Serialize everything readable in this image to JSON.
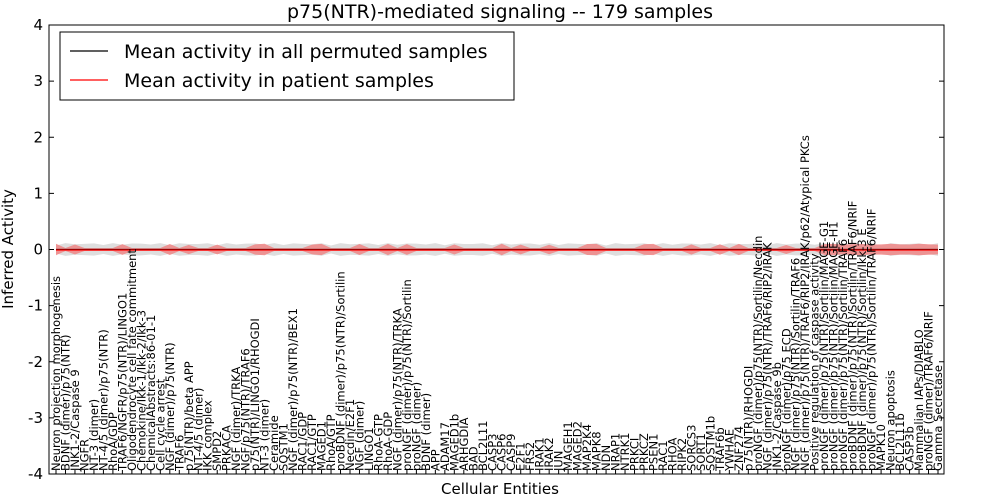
{
  "chart_data": {
    "type": "line",
    "title": "p75(NTR)-mediated signaling -- 179 samples",
    "xlabel": "Cellular Entities",
    "ylabel": "Inferred Activity",
    "ylim": [
      -4,
      4
    ],
    "yticks": [
      -4,
      -3,
      -2,
      -1,
      0,
      1,
      2,
      3,
      4
    ],
    "grid": false,
    "legend_position": "top-left",
    "series": [
      {
        "name": "Mean activity in all permuted samples",
        "color": "#000000",
        "value": 0
      },
      {
        "name": "Mean activity in patient samples",
        "color": "#ff0000",
        "value": 0
      }
    ],
    "band_colors": {
      "patient": "#f08080",
      "permuted": "#c8c8c8"
    },
    "categories": [
      "Neuron projection morphogenesis",
      "BDNF (dimer)/p75(NTR)",
      "JNK1-2/Caspase 9",
      "NGFR",
      "NT-3 (dimer)",
      "NT-4/5 (dimer)/p75(NTR)",
      "RhoA/GDP",
      "TRAF6/NGFR/p75(NTR)/LINGO1",
      "Oligodendrocyte cell fate commitment",
      "Chemokine/Ikk-1/Ikk-2/Ikk-3",
      "ChemicalAbstracts:86-01-1",
      "Cell cycle arrest",
      "NGF (dimer)/p75(NTR)",
      "TRAF6",
      "p75(NTR)/beta APP",
      "NT-4/5 (dimer)",
      "IKK complex",
      "SMPD2",
      "PRKACA",
      "NGF (dimer)/TRKA",
      "NGF/p75(NTR)/TRAF6",
      "p75(NTR)/LINGO1/RHOGDI",
      "NT-3 (dimer)",
      "Ceramide",
      "SQSTM1",
      "NGF (dimer)/p75(NTR)/BEX1",
      "RAC1/GDP",
      "RAC1/GTP",
      "MAGED1",
      "RhoA/GTP",
      "proBDNF (dimer)/p75(NTR)/Sortilin",
      "Necdin/E2F1",
      "NGF (dimer)",
      "LINGO1",
      "RhoA-GTP",
      "RhoA-GDP",
      "NGF (dimer)/p75(NTR)/TRKA",
      "proNGF (dimer)/p75(NTR)/Sortilin",
      "proNGF (dimer)",
      "BDNF (dimer)",
      "APP",
      "ADAM17",
      "MAGED1b",
      "ARHGDIA",
      "BAD",
      "BCL2L11",
      "CASP3",
      "CASP6",
      "CASP9",
      "E2F1",
      "FRS2",
      "IRAK1",
      "IRAK2",
      "JUN",
      "MAGEH1",
      "MAGED2",
      "MAP2K4",
      "MAPK8",
      "NDN",
      "NRAP1",
      "NTRK1",
      "PRKCI",
      "PRKCZ",
      "PSEN1",
      "RAC1",
      "RHOA",
      "RIPK2",
      "SORCS3",
      "SORT1",
      "SQSTM1b",
      "TRAF6b",
      "YWHAE",
      "ZNF274",
      "p75(NTR)/RHOGDI",
      "proNGF (dimer)/p75(NTR)/Sortilin/Necdin",
      "NGF (dimer)/p75(NTR)/TRAF6/RIP2/IRAK",
      "JNK1-2/Caspase 9b",
      "proNGF (dimer)/p75 ECD",
      "NGF (dimer)/p75(NTR)/Sortilin/TRAF6",
      "NGF (dimer)/p75(NTR)/TRAF6/RIP2/IRAK/p62/Atypical PKCs",
      "Positive regulation of caspase activity",
      "proNGF (dimer)/p75(NTR)/Sortilin/MAGE-G1",
      "proNGF (dimer)/p75(NTR)/Sortilin/MAGE-H1",
      "proNGF (dimer)/p75(NTR)/Sortilin/TRAF6",
      "proBDNF (dimer)/p75(NTR)/Sortilin/TRAF6/NRIF",
      "proBDNF (dimer)/p75(NTR)/Sortilin/Ikk-3 E",
      "proNGF (dimer)/p75(NTR)/Sortilin/TRAF6/NRIF",
      "MAPK10",
      "Neuron apoptosis",
      "BCL2L11b",
      "CASP3b",
      "Mammalian IAPs/DIABLO",
      "proNGF (dimer)/TRAF6/NRIF",
      "Gamma Secretase"
    ]
  }
}
